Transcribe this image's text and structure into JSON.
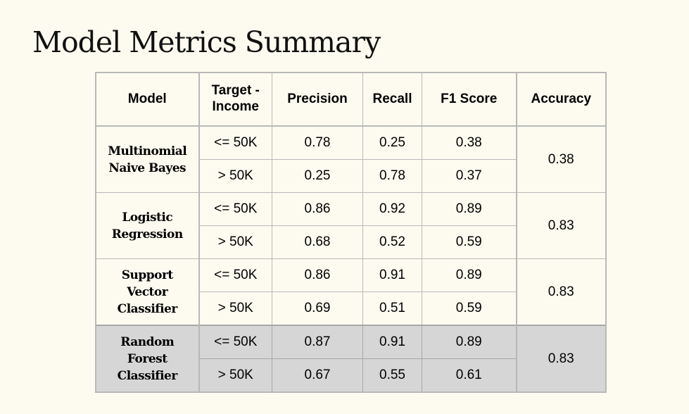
{
  "title": "Model Metrics Summary",
  "table": {
    "headers": {
      "model": "Model",
      "target_line1": "Target -",
      "target_line2": "Income",
      "precision": "Precision",
      "recall": "Recall",
      "f1": "F1 Score",
      "accuracy": "Accuracy"
    },
    "models": [
      {
        "name": [
          "Multinomial",
          "Naive Bayes"
        ],
        "accuracy": "0.38",
        "highlighted": false,
        "rows": [
          {
            "target": "<= 50K",
            "precision": "0.78",
            "recall": "0.25",
            "f1": "0.38"
          },
          {
            "target": "> 50K",
            "precision": "0.25",
            "recall": "0.78",
            "f1": "0.37"
          }
        ]
      },
      {
        "name": [
          "Logistic",
          "Regression"
        ],
        "accuracy": "0.83",
        "highlighted": false,
        "rows": [
          {
            "target": "<= 50K",
            "precision": "0.86",
            "recall": "0.92",
            "f1": "0.89"
          },
          {
            "target": "> 50K",
            "precision": "0.68",
            "recall": "0.52",
            "f1": "0.59"
          }
        ]
      },
      {
        "name": [
          "Support",
          "Vector",
          "Classifier"
        ],
        "accuracy": "0.83",
        "highlighted": false,
        "rows": [
          {
            "target": "<= 50K",
            "precision": "0.86",
            "recall": "0.91",
            "f1": "0.89"
          },
          {
            "target": "> 50K",
            "precision": "0.69",
            "recall": "0.51",
            "f1": "0.59"
          }
        ]
      },
      {
        "name": [
          "Random",
          "Forest",
          "Classifier"
        ],
        "accuracy": "0.83",
        "highlighted": true,
        "rows": [
          {
            "target": "<= 50K",
            "precision": "0.87",
            "recall": "0.91",
            "f1": "0.89"
          },
          {
            "target": "> 50K",
            "precision": "0.67",
            "recall": "0.55",
            "f1": "0.61"
          }
        ]
      }
    ]
  }
}
